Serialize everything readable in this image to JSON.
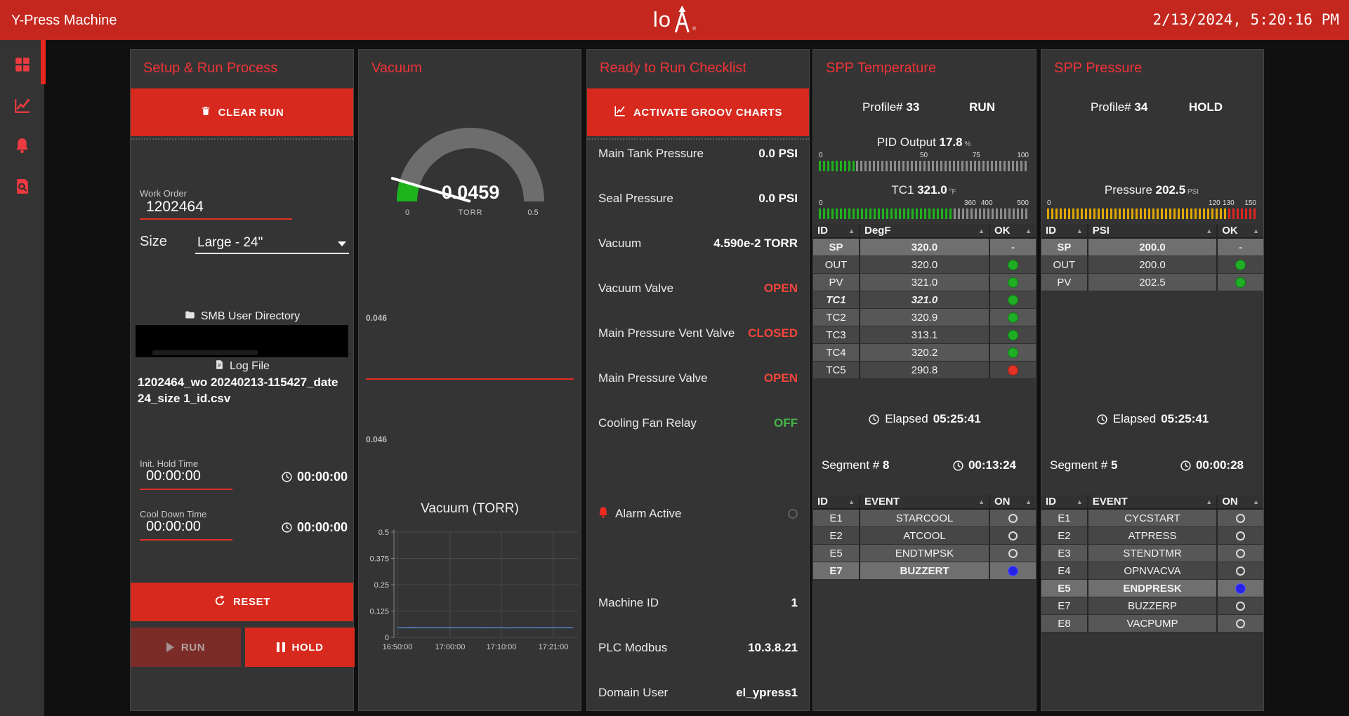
{
  "header": {
    "app_title": "Y-Press Machine",
    "logo_text": "lo",
    "logo_registered": "®",
    "datetime": "2/13/2024, 5:20:16 PM"
  },
  "sidebar": {
    "items": [
      {
        "name": "dashboard",
        "active": true
      },
      {
        "name": "trends",
        "active": false
      },
      {
        "name": "alarms",
        "active": false
      },
      {
        "name": "log-viewer",
        "active": false
      }
    ]
  },
  "setup_panel": {
    "title": "Setup & Run Process",
    "clear_button": "CLEAR RUN",
    "work_order_label": "Work Order",
    "work_order_value": "1202464",
    "size_label": "Size",
    "size_value": "Large - 24\"",
    "smb_label": "SMB User Directory",
    "log_label": "Log File",
    "log_file_name": "1202464_wo 20240213-115427_date 24_size 1_id.csv",
    "init_hold_label": "Init. Hold Time",
    "init_hold_value": "00:00:00",
    "init_hold_elapsed": "00:00:00",
    "cool_down_label": "Cool Down Time",
    "cool_down_value": "00:00:00",
    "cool_down_elapsed": "00:00:00",
    "reset_button": "RESET",
    "run_button": "RUN",
    "hold_button": "HOLD"
  },
  "vacuum_panel": {
    "title": "Vacuum",
    "gauge": {
      "value": "0.0459",
      "unit": "TORR",
      "min_label": "0",
      "max_label": "0.5",
      "percent": 9.18
    },
    "trend_high_label": "0.046",
    "trend_low_label": "0.046",
    "chart_title": "Vacuum (TORR)"
  },
  "checklist_panel": {
    "title": "Ready to Run Checklist",
    "activate_button": "ACTIVATE GROOV CHARTS",
    "items": [
      {
        "label": "Main Tank Pressure",
        "value": "0.0 PSI",
        "state": "normal"
      },
      {
        "label": "Seal Pressure",
        "value": "0.0 PSI",
        "state": "normal"
      },
      {
        "label": "Vacuum",
        "value": "4.590e-2 TORR",
        "state": "normal"
      },
      {
        "label": "Vacuum Valve",
        "value": "OPEN",
        "state": "alert"
      },
      {
        "label": "Main Pressure Vent Valve",
        "value": "CLOSED",
        "state": "alert"
      },
      {
        "label": "Main Pressure Valve",
        "value": "OPEN",
        "state": "alert"
      },
      {
        "label": "Cooling Fan Relay",
        "value": "OFF",
        "state": "ok"
      }
    ],
    "alarm_label": "Alarm Active",
    "info_items": [
      {
        "label": "Machine ID",
        "value": "1",
        "state": "normal"
      },
      {
        "label": "PLC Modbus",
        "value": "10.3.8.21",
        "state": "normal"
      },
      {
        "label": "Domain User",
        "value": "el_ypress1",
        "state": "normal"
      }
    ]
  },
  "temperature_panel": {
    "title": "SPP Temperature",
    "profile_label": "Profile#",
    "profile_number": "33",
    "mode": "RUN",
    "bars": [
      {
        "label": "PID Output",
        "value": "17.8",
        "unit": "%",
        "scale": [
          {
            "text": "0",
            "pct": 0
          },
          {
            "text": "50",
            "pct": 50
          },
          {
            "text": "75",
            "pct": 75
          },
          {
            "text": "100",
            "pct": 100
          }
        ],
        "segments": [
          {
            "pct": 17.8,
            "color": "#1db31d"
          }
        ]
      },
      {
        "label": "TC1",
        "value": "321.0",
        "unit": "°F",
        "scale": [
          {
            "text": "0",
            "pct": 0
          },
          {
            "text": "360",
            "pct": 72
          },
          {
            "text": "400",
            "pct": 80
          },
          {
            "text": "500",
            "pct": 100
          }
        ],
        "segments": [
          {
            "pct": 64.2,
            "color": "#1db31d"
          }
        ]
      }
    ],
    "table": {
      "columns": [
        "ID",
        "DegF",
        "OK"
      ],
      "rows": [
        {
          "id": "SP",
          "value": "320.0",
          "status": "-",
          "highlight": true
        },
        {
          "id": "OUT",
          "value": "320.0",
          "status": "green"
        },
        {
          "id": "PV",
          "value": "321.0",
          "status": "green"
        },
        {
          "id": "TC1",
          "value": "321.0",
          "status": "green",
          "italic": true
        },
        {
          "id": "TC2",
          "value": "320.9",
          "status": "green"
        },
        {
          "id": "TC3",
          "value": "313.1",
          "status": "green"
        },
        {
          "id": "TC4",
          "value": "320.2",
          "status": "green"
        },
        {
          "id": "TC5",
          "value": "290.8",
          "status": "red"
        }
      ]
    },
    "elapsed_label": "Elapsed",
    "elapsed_time": "05:25:41",
    "segment_label": "Segment #",
    "segment_number": "8",
    "segment_time": "00:13:24",
    "events": {
      "columns": [
        "ID",
        "EVENT",
        "ON"
      ],
      "rows": [
        {
          "id": "E1",
          "event": "STARCOOL",
          "status": "off"
        },
        {
          "id": "E2",
          "event": "ATCOOL",
          "status": "off"
        },
        {
          "id": "E5",
          "event": "ENDTMPSK",
          "status": "off"
        },
        {
          "id": "E7",
          "event": "BUZZERT",
          "status": "blue",
          "highlight": true
        }
      ]
    }
  },
  "pressure_panel": {
    "title": "SPP Pressure",
    "profile_label": "Profile#",
    "profile_number": "34",
    "mode": "HOLD",
    "bars": [
      {
        "label": "Pressure",
        "value": "202.5",
        "unit": "PSI",
        "scale": [
          {
            "text": "0",
            "pct": 0
          },
          {
            "text": "120",
            "pct": 80
          },
          {
            "text": "130",
            "pct": 86.7
          },
          {
            "text": "150",
            "pct": 100
          }
        ],
        "segments": [
          {
            "pct": 86.7,
            "color": "#e2a800"
          },
          {
            "pct": 13.3,
            "color": "#e02520"
          }
        ]
      }
    ],
    "table": {
      "columns": [
        "ID",
        "PSI",
        "OK"
      ],
      "rows": [
        {
          "id": "SP",
          "value": "200.0",
          "status": "-",
          "highlight": true
        },
        {
          "id": "OUT",
          "value": "200.0",
          "status": "green"
        },
        {
          "id": "PV",
          "value": "202.5",
          "status": "green"
        }
      ]
    },
    "elapsed_label": "Elapsed",
    "elapsed_time": "05:25:41",
    "segment_label": "Segment #",
    "segment_number": "5",
    "segment_time": "00:00:28",
    "events": {
      "columns": [
        "ID",
        "EVENT",
        "ON"
      ],
      "rows": [
        {
          "id": "E1",
          "event": "CYCSTART",
          "status": "off"
        },
        {
          "id": "E2",
          "event": "ATPRESS",
          "status": "off"
        },
        {
          "id": "E3",
          "event": "STENDTMR",
          "status": "off"
        },
        {
          "id": "E4",
          "event": "OPNVACVA",
          "status": "off"
        },
        {
          "id": "E5",
          "event": "ENDPRESK",
          "status": "blue",
          "highlight": true
        },
        {
          "id": "E7",
          "event": "BUZZERP",
          "status": "off"
        },
        {
          "id": "E8",
          "event": "VACPUMP",
          "status": "off"
        }
      ]
    }
  },
  "chart_data": {
    "type": "line",
    "title": "Vacuum (TORR)",
    "ylim": [
      0,
      0.5
    ],
    "y_ticks": [
      "0.5",
      "0.375",
      "0.25",
      "0.125",
      "0"
    ],
    "x_ticks": [
      "16:50:00",
      "17:00:00",
      "17:10:00",
      "17:21:00"
    ],
    "grid": true,
    "legend": false,
    "series": [
      {
        "name": "Vacuum",
        "color": "#4f7fba",
        "values": [
          0.0461,
          0.0458,
          0.0463,
          0.046,
          0.0466,
          0.0457,
          0.0461,
          0.0464,
          0.0455,
          0.046,
          0.0468,
          0.0459,
          0.0462,
          0.0456,
          0.0465,
          0.046,
          0.0453,
          0.0461,
          0.0466,
          0.0458,
          0.0462,
          0.0457,
          0.0464,
          0.0459,
          0.0461,
          0.0459
        ]
      }
    ]
  },
  "colors": {
    "brand_red": "#c3271e",
    "button_red": "#d7291d",
    "ok_green": "#1fae25",
    "alarm_red": "#e43225",
    "event_blue": "#2523e8",
    "warn_amber": "#e2a800"
  }
}
